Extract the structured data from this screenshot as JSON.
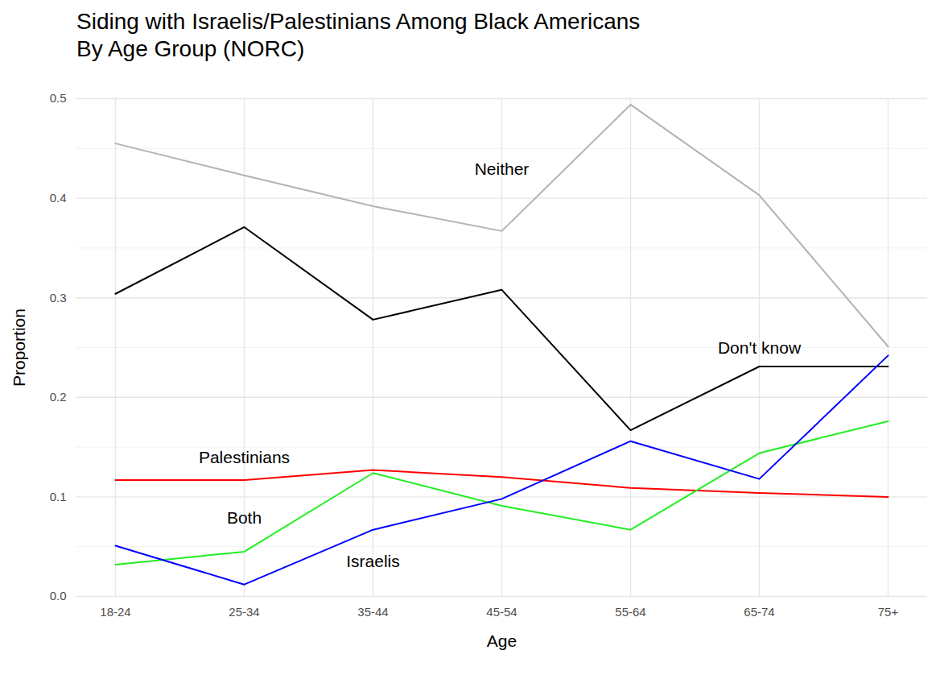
{
  "chart_data": {
    "type": "line",
    "title": "Siding with Israelis/Palestinians Among Black Americans\nBy Age Group (NORC)",
    "x_label": "Age",
    "y_label": "Proportion",
    "categories": [
      "18-24",
      "25-34",
      "35-44",
      "45-54",
      "55-64",
      "65-74",
      "75+"
    ],
    "series": [
      {
        "name": "Neither",
        "color": "#b3b3b3",
        "values": [
          0.455,
          0.423,
          0.392,
          0.367,
          0.494,
          0.403,
          0.251
        ]
      },
      {
        "name": "Don't know",
        "color": "#000000",
        "values": [
          0.304,
          0.371,
          0.278,
          0.308,
          0.167,
          0.231,
          0.231
        ]
      },
      {
        "name": "Palestinians",
        "color": "#ff0000",
        "values": [
          0.117,
          0.117,
          0.127,
          0.12,
          0.109,
          0.104,
          0.1
        ]
      },
      {
        "name": "Both",
        "color": "#22ee22",
        "values": [
          0.032,
          0.045,
          0.124,
          0.091,
          0.067,
          0.144,
          0.176
        ]
      },
      {
        "name": "Israelis",
        "color": "#0000ff",
        "values": [
          0.051,
          0.012,
          0.067,
          0.098,
          0.156,
          0.118,
          0.242
        ]
      }
    ],
    "ylim": [
      0,
      0.5
    ],
    "yticks": [
      {
        "value": 0,
        "label": "0.0"
      },
      0.1,
      0.2,
      0.3,
      0.4,
      0.5
    ],
    "grid": true
  }
}
